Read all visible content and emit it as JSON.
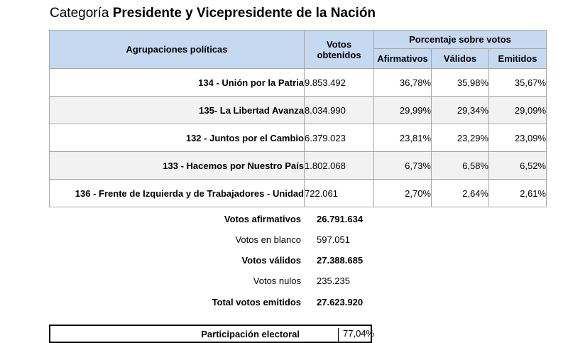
{
  "header": {
    "prefix": "Categoría",
    "category": "Presidente y Vicepresidente de la Nación"
  },
  "table": {
    "col_party": "Agrupaciones políticas",
    "col_votes_line1": "Votos",
    "col_votes_line2": "obtenidos",
    "col_pct_group": "Porcentaje sobre votos",
    "col_afirmativos": "Afirmativos",
    "col_validos": "Válidos",
    "col_emitidos": "Emitidos",
    "rows": [
      {
        "party": "134 - Unión por la Patria",
        "votes": "9.853.492",
        "afirmativos": "36,78%",
        "validos": "35,98%",
        "emitidos": "35,67%"
      },
      {
        "party": "135- La Libertad Avanza",
        "votes": "8.034.990",
        "afirmativos": "29,99%",
        "validos": "29,34%",
        "emitidos": "29,09%"
      },
      {
        "party": "132 - Juntos por el Cambio",
        "votes": "6.379.023",
        "afirmativos": "23,81%",
        "validos": "23,29%",
        "emitidos": "23,09%"
      },
      {
        "party": "133 - Hacemos por Nuestro País",
        "votes": "1.802.068",
        "afirmativos": "6,73%",
        "validos": "6,58%",
        "emitidos": "6,52%"
      },
      {
        "party": "136 - Frente de Izquierda y de Trabajadores - Unidad",
        "votes": "722.061",
        "afirmativos": "2,70%",
        "validos": "2,64%",
        "emitidos": "2,61%"
      }
    ]
  },
  "summary": {
    "afirmativos_label": "Votos afirmativos",
    "afirmativos_value": "26.791.634",
    "blanco_label": "Votos en blanco",
    "blanco_value": "597.051",
    "validos_label": "Votos válidos",
    "validos_value": "27.388.685",
    "nulos_label": "Votos nulos",
    "nulos_value": "235.235",
    "emitidos_label": "Total votos emitidos",
    "emitidos_value": "27.623.920"
  },
  "participation": {
    "label": "Participación electoral",
    "value": "77,04%"
  }
}
